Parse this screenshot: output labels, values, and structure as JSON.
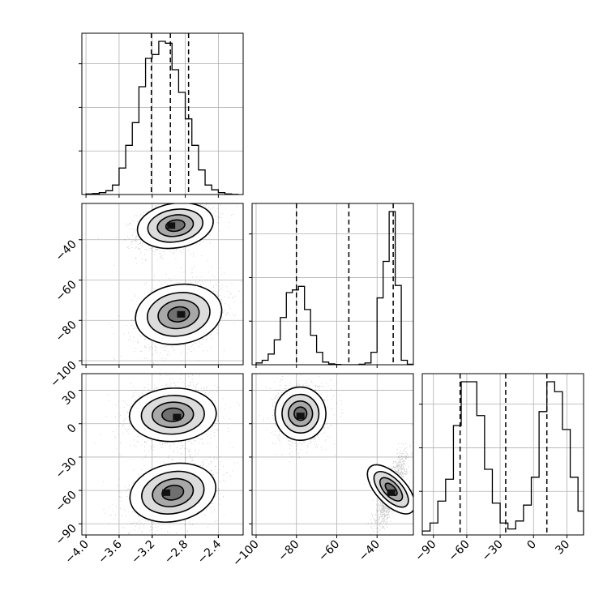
{
  "chart_data": {
    "type": "corner",
    "parameters": [
      {
        "ticks": [
          -4.0,
          -3.6,
          -3.2,
          -2.8,
          -2.4
        ],
        "tick_labels": [
          "−4.0",
          "−3.6",
          "−3.2",
          "−2.8",
          "−2.4"
        ],
        "range": [
          -4.05,
          -2.1
        ]
      },
      {
        "ticks": [
          -100,
          -80,
          -60,
          -40
        ],
        "tick_labels": [
          "−100",
          "−80",
          "−60",
          "−40"
        ],
        "range": [
          -102,
          -22
        ]
      },
      {
        "ticks": [
          -90,
          -60,
          -30,
          0,
          30
        ],
        "tick_labels": [
          "−90",
          "−60",
          "−30",
          "0",
          "30"
        ],
        "range": [
          -100,
          45
        ]
      }
    ],
    "histograms": [
      {
        "param": 0,
        "bin_edges": [
          -4.0,
          -3.92,
          -3.84,
          -3.76,
          -3.68,
          -3.6,
          -3.52,
          -3.44,
          -3.36,
          -3.28,
          -3.2,
          -3.12,
          -3.04,
          -2.96,
          -2.88,
          -2.8,
          -2.72,
          -2.64,
          -2.56,
          -2.48,
          -2.4,
          -2.32,
          -2.24,
          -2.16
        ],
        "counts": [
          0.3,
          0.5,
          1,
          2,
          5,
          14,
          26,
          38,
          57,
          72,
          74,
          81,
          80,
          66,
          54,
          40,
          26,
          13,
          5,
          2.5,
          1,
          0.3,
          0.1
        ],
        "quantile_lines": [
          -3.21,
          -2.98,
          -2.76
        ]
      },
      {
        "param": 1,
        "bin_edges": [
          -100,
          -97,
          -94,
          -91,
          -88,
          -85,
          -82,
          -79,
          -76,
          -73,
          -70,
          -67,
          -64,
          -61,
          -58,
          -55,
          -52,
          -49,
          -46,
          -43,
          -40,
          -37,
          -34,
          -31,
          -28,
          -25,
          -22
        ],
        "counts": [
          2,
          5,
          12,
          28,
          53,
          81,
          84,
          88,
          62,
          33,
          14,
          3,
          1,
          0.3,
          0,
          0,
          0,
          0.5,
          2,
          14,
          75,
          116,
          172,
          89,
          5,
          0.5
        ],
        "quantile_lines": [
          -80,
          -54,
          -32
        ]
      },
      {
        "param": 2,
        "bin_edges": [
          -100,
          -93,
          -86,
          -79,
          -72,
          -65,
          -58,
          -51,
          -44,
          -37,
          -30,
          -23,
          -16,
          -9,
          -2,
          5,
          12,
          19,
          26,
          33,
          40,
          45
        ],
        "counts": [
          2,
          6,
          17,
          28,
          55,
          77,
          77,
          60,
          33,
          16,
          6,
          3,
          7,
          15,
          29,
          62,
          77,
          72,
          53,
          29,
          12
        ],
        "quantile_lines": [
          -66,
          -25,
          12
        ]
      }
    ],
    "scatter_2d": [
      {
        "x_param": 0,
        "y_param": 1,
        "clusters": [
          {
            "center": [
              -2.92,
              -33
            ],
            "spread": [
              0.22,
              6
            ],
            "corr": 0.35,
            "peak": [
              -2.97,
              -33
            ]
          },
          {
            "center": [
              -2.88,
              -77
            ],
            "spread": [
              0.25,
              8
            ],
            "corr": 0.3,
            "peak": [
              -2.85,
              -77
            ]
          }
        ]
      },
      {
        "x_param": 0,
        "y_param": 2,
        "clusters": [
          {
            "center": [
              -2.95,
              8
            ],
            "spread": [
              0.25,
              13
            ],
            "corr": 0.1,
            "peak": [
              -2.9,
              6
            ]
          },
          {
            "center": [
              -2.95,
              -62
            ],
            "spread": [
              0.25,
              14
            ],
            "corr": 0.4,
            "peak": [
              -3.03,
              -62
            ]
          }
        ]
      },
      {
        "x_param": 1,
        "y_param": 2,
        "clusters": [
          {
            "center": [
              -78,
              9
            ],
            "spread": [
              6,
              13
            ],
            "corr": 0.05,
            "peak": [
              -78,
              7
            ]
          },
          {
            "center": [
              -33,
              -59
            ],
            "spread": [
              3.5,
              15
            ],
            "corr": 0.8,
            "peak": [
              -33,
              -62
            ]
          }
        ]
      }
    ],
    "grid": true,
    "title": "",
    "xlabel": "",
    "ylabel": ""
  }
}
